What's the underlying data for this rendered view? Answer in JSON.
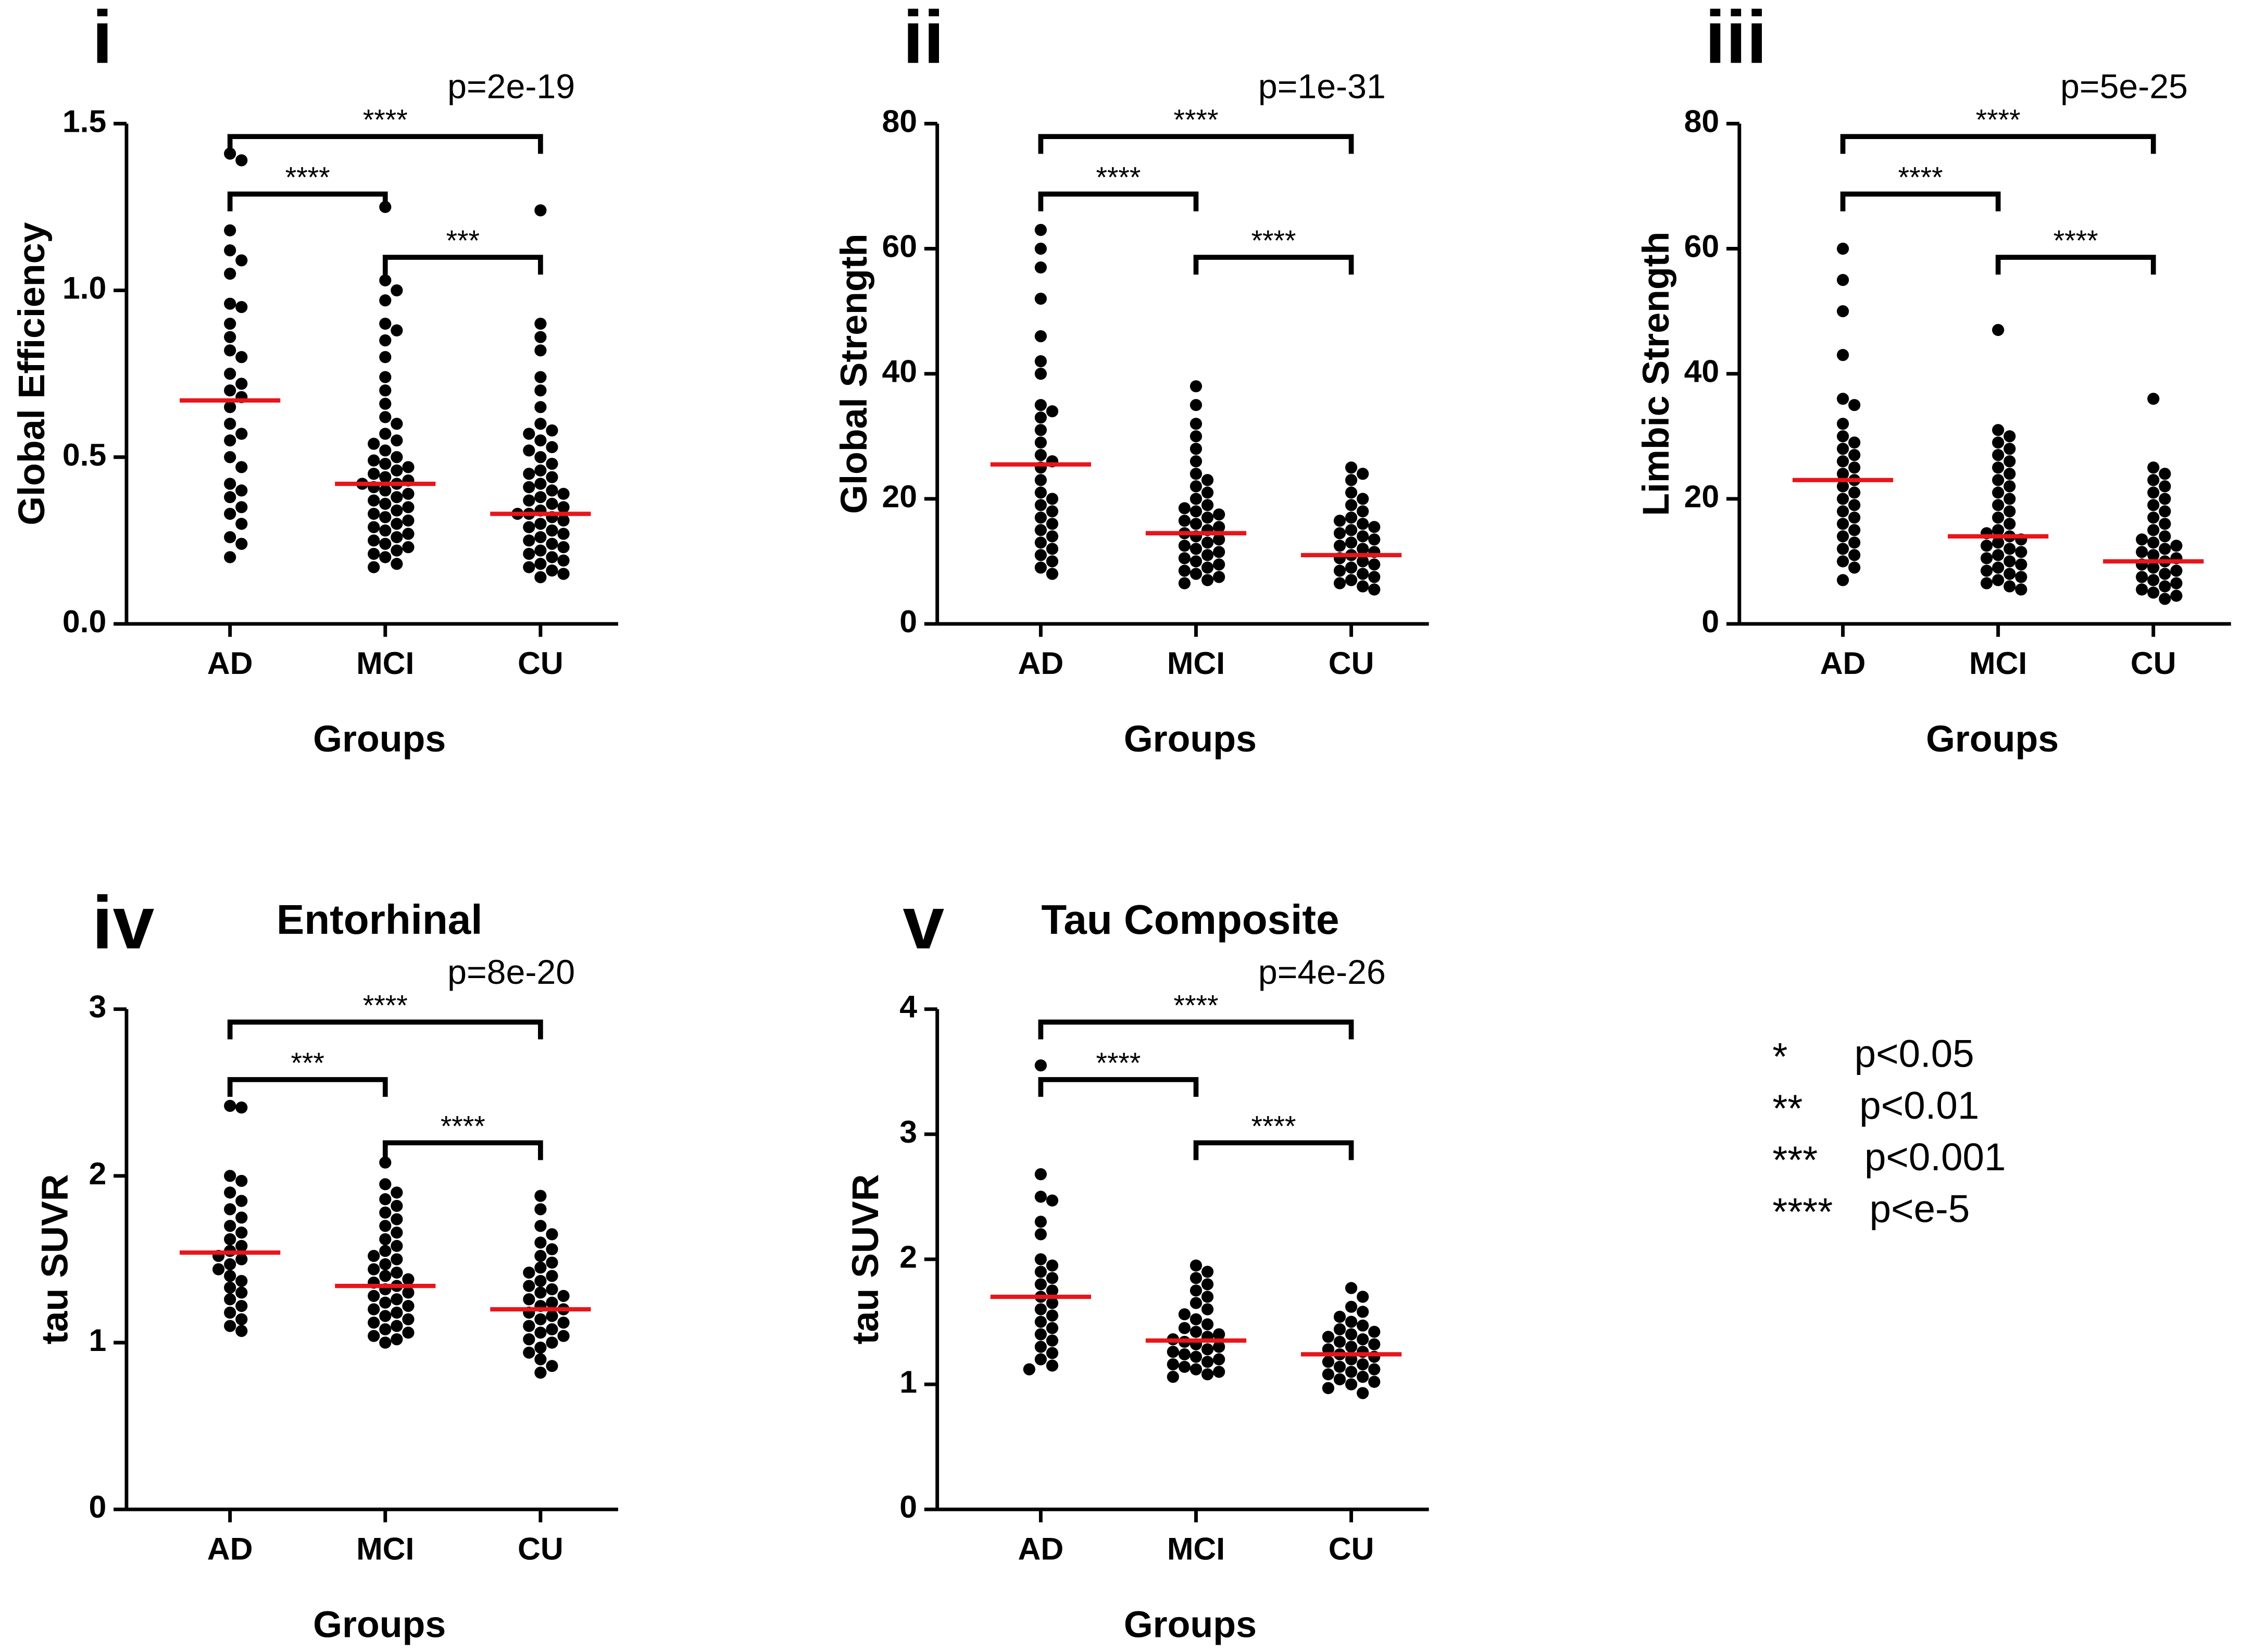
{
  "chart_data": [
    {
      "type": "beeswarm",
      "label": "i",
      "annotation": "p=2e-19",
      "ylabel": "Global Efficiency",
      "xlabel": "Groups",
      "categories": [
        "AD",
        "MCI",
        "CU"
      ],
      "color": "#000000",
      "mean_color": "#e8151b",
      "ylim": [
        0,
        1.5
      ],
      "yticks": [
        {
          "value": 0,
          "label": "0.0"
        },
        {
          "value": 0.5,
          "label": "0.5"
        },
        {
          "value": 1,
          "label": "1.0"
        },
        {
          "value": 1.5,
          "label": "1.5"
        }
      ],
      "groups": [
        {
          "values": [
            1.41,
            1.39,
            1.18,
            1.12,
            1.09,
            1.05,
            0.96,
            0.95,
            0.9,
            0.86,
            0.82,
            0.8,
            0.75,
            0.72,
            0.7,
            0.68,
            0.65,
            0.6,
            0.57,
            0.55,
            0.5,
            0.47,
            0.42,
            0.4,
            0.38,
            0.35,
            0.33,
            0.3,
            0.26,
            0.24,
            0.2
          ]
        },
        {
          "values": [
            1.25,
            1.03,
            1.0,
            0.97,
            0.9,
            0.88,
            0.85,
            0.8,
            0.74,
            0.7,
            0.66,
            0.62,
            0.6,
            0.57,
            0.55,
            0.54,
            0.52,
            0.5,
            0.49,
            0.48,
            0.47,
            0.46,
            0.45,
            0.44,
            0.43,
            0.42,
            0.42,
            0.41,
            0.4,
            0.39,
            0.38,
            0.37,
            0.36,
            0.35,
            0.34,
            0.33,
            0.32,
            0.31,
            0.3,
            0.29,
            0.28,
            0.27,
            0.26,
            0.25,
            0.24,
            0.23,
            0.22,
            0.21,
            0.2,
            0.18,
            0.17
          ]
        },
        {
          "values": [
            1.24,
            0.9,
            0.86,
            0.82,
            0.74,
            0.7,
            0.65,
            0.6,
            0.58,
            0.57,
            0.55,
            0.53,
            0.52,
            0.5,
            0.48,
            0.46,
            0.45,
            0.44,
            0.42,
            0.41,
            0.4,
            0.39,
            0.38,
            0.37,
            0.36,
            0.35,
            0.34,
            0.33,
            0.33,
            0.32,
            0.31,
            0.3,
            0.29,
            0.28,
            0.27,
            0.26,
            0.25,
            0.24,
            0.23,
            0.22,
            0.21,
            0.2,
            0.19,
            0.18,
            0.17,
            0.16,
            0.15,
            0.14
          ]
        }
      ],
      "means": [
        0.67,
        0.42,
        0.33
      ],
      "brackets": [
        {
          "from": 0,
          "to": 2,
          "label": "****"
        },
        {
          "from": 0,
          "to": 1,
          "label": "****"
        },
        {
          "from": 1,
          "to": 2,
          "label": "***"
        }
      ]
    },
    {
      "type": "beeswarm",
      "label": "ii",
      "annotation": "p=1e-31",
      "ylabel": "Global Strength",
      "xlabel": "Groups",
      "categories": [
        "AD",
        "MCI",
        "CU"
      ],
      "color": "#000000",
      "mean_color": "#e8151b",
      "ylim": [
        0,
        80
      ],
      "yticks": [
        0,
        20,
        40,
        60,
        80
      ],
      "groups": [
        {
          "values": [
            63,
            60,
            57,
            52,
            46,
            42,
            40,
            35,
            34,
            33,
            31,
            29,
            27,
            26,
            25,
            23,
            21,
            20,
            19,
            18,
            17,
            16,
            15,
            14,
            13,
            12,
            11,
            10,
            9,
            8
          ]
        },
        {
          "values": [
            38,
            35,
            32,
            30,
            28,
            26,
            24,
            23,
            22,
            21,
            20,
            19,
            18.5,
            18,
            17.5,
            17,
            16.5,
            16,
            15.5,
            15,
            14.5,
            14,
            13.5,
            13,
            12.5,
            12,
            11.5,
            11,
            10.5,
            10,
            9.5,
            9,
            8.5,
            8,
            7.5,
            7,
            6.5
          ]
        },
        {
          "values": [
            25,
            24,
            23,
            21,
            20,
            19,
            18,
            17,
            16.5,
            16,
            15.5,
            15,
            14.5,
            14,
            13.5,
            13,
            12.5,
            12,
            11.5,
            11,
            10.5,
            10,
            9.5,
            9,
            8.5,
            8,
            7.5,
            7,
            6.5,
            6,
            5.5
          ]
        }
      ],
      "means": [
        25.5,
        14.5,
        11
      ],
      "brackets": [
        {
          "from": 0,
          "to": 2,
          "label": "****"
        },
        {
          "from": 0,
          "to": 1,
          "label": "****"
        },
        {
          "from": 1,
          "to": 2,
          "label": "****"
        }
      ]
    },
    {
      "type": "beeswarm",
      "label": "iii",
      "annotation": "p=5e-25",
      "ylabel": "Limbic Strength",
      "xlabel": "Groups",
      "categories": [
        "AD",
        "MCI",
        "CU"
      ],
      "color": "#000000",
      "mean_color": "#e8151b",
      "ylim": [
        0,
        80
      ],
      "yticks": [
        0,
        20,
        40,
        60,
        80
      ],
      "groups": [
        {
          "values": [
            60,
            55,
            50,
            43,
            36,
            35,
            32,
            30,
            29,
            28,
            27,
            26,
            25,
            24,
            23,
            22,
            21,
            20,
            19,
            18,
            17,
            16,
            15,
            14,
            13,
            12,
            11,
            10,
            9,
            7
          ]
        },
        {
          "values": [
            47,
            31,
            30,
            29,
            28,
            27,
            26,
            25,
            24,
            23,
            22,
            21,
            20,
            19,
            18,
            17,
            16,
            15,
            14.5,
            14,
            13.5,
            13,
            12.5,
            12,
            11.5,
            11,
            10.5,
            10,
            9.5,
            9,
            8.5,
            8,
            7.5,
            7,
            6.5,
            6,
            5.5
          ]
        },
        {
          "values": [
            36,
            25,
            24,
            23,
            22,
            21,
            20,
            19,
            18,
            17,
            16,
            15,
            14,
            13.5,
            13,
            12.5,
            12,
            11.5,
            11,
            10.5,
            10,
            9.5,
            9,
            8.5,
            8,
            7.5,
            7,
            6.5,
            6,
            5.5,
            5,
            4.5,
            4
          ]
        }
      ],
      "means": [
        23,
        14,
        10
      ],
      "brackets": [
        {
          "from": 0,
          "to": 2,
          "label": "****"
        },
        {
          "from": 0,
          "to": 1,
          "label": "****"
        },
        {
          "from": 1,
          "to": 2,
          "label": "****"
        }
      ]
    },
    {
      "type": "beeswarm",
      "label": "iv",
      "title": "Entorhinal",
      "annotation": "p=8e-20",
      "ylabel": "tau SUVR",
      "xlabel": "Groups",
      "categories": [
        "AD",
        "MCI",
        "CU"
      ],
      "color": "#000000",
      "mean_color": "#e8151b",
      "ylim": [
        0,
        3
      ],
      "yticks": [
        0,
        1,
        2,
        3
      ],
      "groups": [
        {
          "values": [
            2.42,
            2.41,
            2.0,
            1.97,
            1.9,
            1.85,
            1.8,
            1.75,
            1.7,
            1.66,
            1.62,
            1.58,
            1.55,
            1.52,
            1.5,
            1.47,
            1.44,
            1.4,
            1.37,
            1.33,
            1.3,
            1.26,
            1.22,
            1.18,
            1.14,
            1.1,
            1.07
          ]
        },
        {
          "values": [
            2.08,
            1.95,
            1.9,
            1.86,
            1.82,
            1.78,
            1.74,
            1.7,
            1.66,
            1.62,
            1.58,
            1.55,
            1.52,
            1.5,
            1.47,
            1.44,
            1.42,
            1.4,
            1.38,
            1.36,
            1.34,
            1.32,
            1.3,
            1.28,
            1.26,
            1.24,
            1.22,
            1.2,
            1.18,
            1.16,
            1.14,
            1.12,
            1.1,
            1.08,
            1.06,
            1.04,
            1.02,
            1.0
          ]
        },
        {
          "values": [
            1.88,
            1.8,
            1.7,
            1.65,
            1.6,
            1.56,
            1.52,
            1.48,
            1.45,
            1.42,
            1.4,
            1.37,
            1.34,
            1.32,
            1.3,
            1.28,
            1.26,
            1.24,
            1.22,
            1.2,
            1.18,
            1.16,
            1.14,
            1.12,
            1.1,
            1.08,
            1.06,
            1.04,
            1.02,
            1.0,
            0.97,
            0.94,
            0.9,
            0.86,
            0.82
          ]
        }
      ],
      "means": [
        1.54,
        1.34,
        1.2
      ],
      "brackets": [
        {
          "from": 0,
          "to": 2,
          "label": "****"
        },
        {
          "from": 0,
          "to": 1,
          "label": "***"
        },
        {
          "from": 1,
          "to": 2,
          "label": "****"
        }
      ]
    },
    {
      "type": "beeswarm",
      "label": "v",
      "title": "Tau Composite",
      "annotation": "p=4e-26",
      "ylabel": "tau SUVR",
      "xlabel": "Groups",
      "categories": [
        "AD",
        "MCI",
        "CU"
      ],
      "color": "#000000",
      "mean_color": "#e8151b",
      "ylim": [
        0,
        4
      ],
      "yticks": [
        0,
        1,
        2,
        3,
        4
      ],
      "groups": [
        {
          "values": [
            3.55,
            2.68,
            2.5,
            2.47,
            2.3,
            2.2,
            2.0,
            1.95,
            1.9,
            1.85,
            1.8,
            1.75,
            1.7,
            1.65,
            1.6,
            1.55,
            1.5,
            1.45,
            1.4,
            1.35,
            1.3,
            1.25,
            1.2,
            1.15,
            1.12
          ]
        },
        {
          "values": [
            1.95,
            1.9,
            1.85,
            1.8,
            1.75,
            1.7,
            1.65,
            1.6,
            1.56,
            1.52,
            1.48,
            1.45,
            1.42,
            1.4,
            1.38,
            1.36,
            1.34,
            1.32,
            1.3,
            1.28,
            1.26,
            1.24,
            1.22,
            1.2,
            1.18,
            1.16,
            1.14,
            1.12,
            1.1,
            1.08,
            1.06
          ]
        },
        {
          "values": [
            1.77,
            1.7,
            1.62,
            1.58,
            1.54,
            1.5,
            1.47,
            1.44,
            1.42,
            1.4,
            1.38,
            1.36,
            1.34,
            1.32,
            1.3,
            1.28,
            1.26,
            1.24,
            1.22,
            1.2,
            1.18,
            1.16,
            1.14,
            1.12,
            1.1,
            1.08,
            1.06,
            1.04,
            1.02,
            1.0,
            0.97,
            0.93
          ]
        }
      ],
      "means": [
        1.7,
        1.35,
        1.24
      ],
      "brackets": [
        {
          "from": 0,
          "to": 2,
          "label": "****"
        },
        {
          "from": 0,
          "to": 1,
          "label": "****"
        },
        {
          "from": 1,
          "to": 2,
          "label": "****"
        }
      ]
    }
  ],
  "legend": [
    {
      "symbol": "*",
      "text": "p<0.05"
    },
    {
      "symbol": "**",
      "text": "p<0.01"
    },
    {
      "symbol": "***",
      "text": "p<0.001"
    },
    {
      "symbol": "****",
      "text": "p<e-5"
    }
  ]
}
